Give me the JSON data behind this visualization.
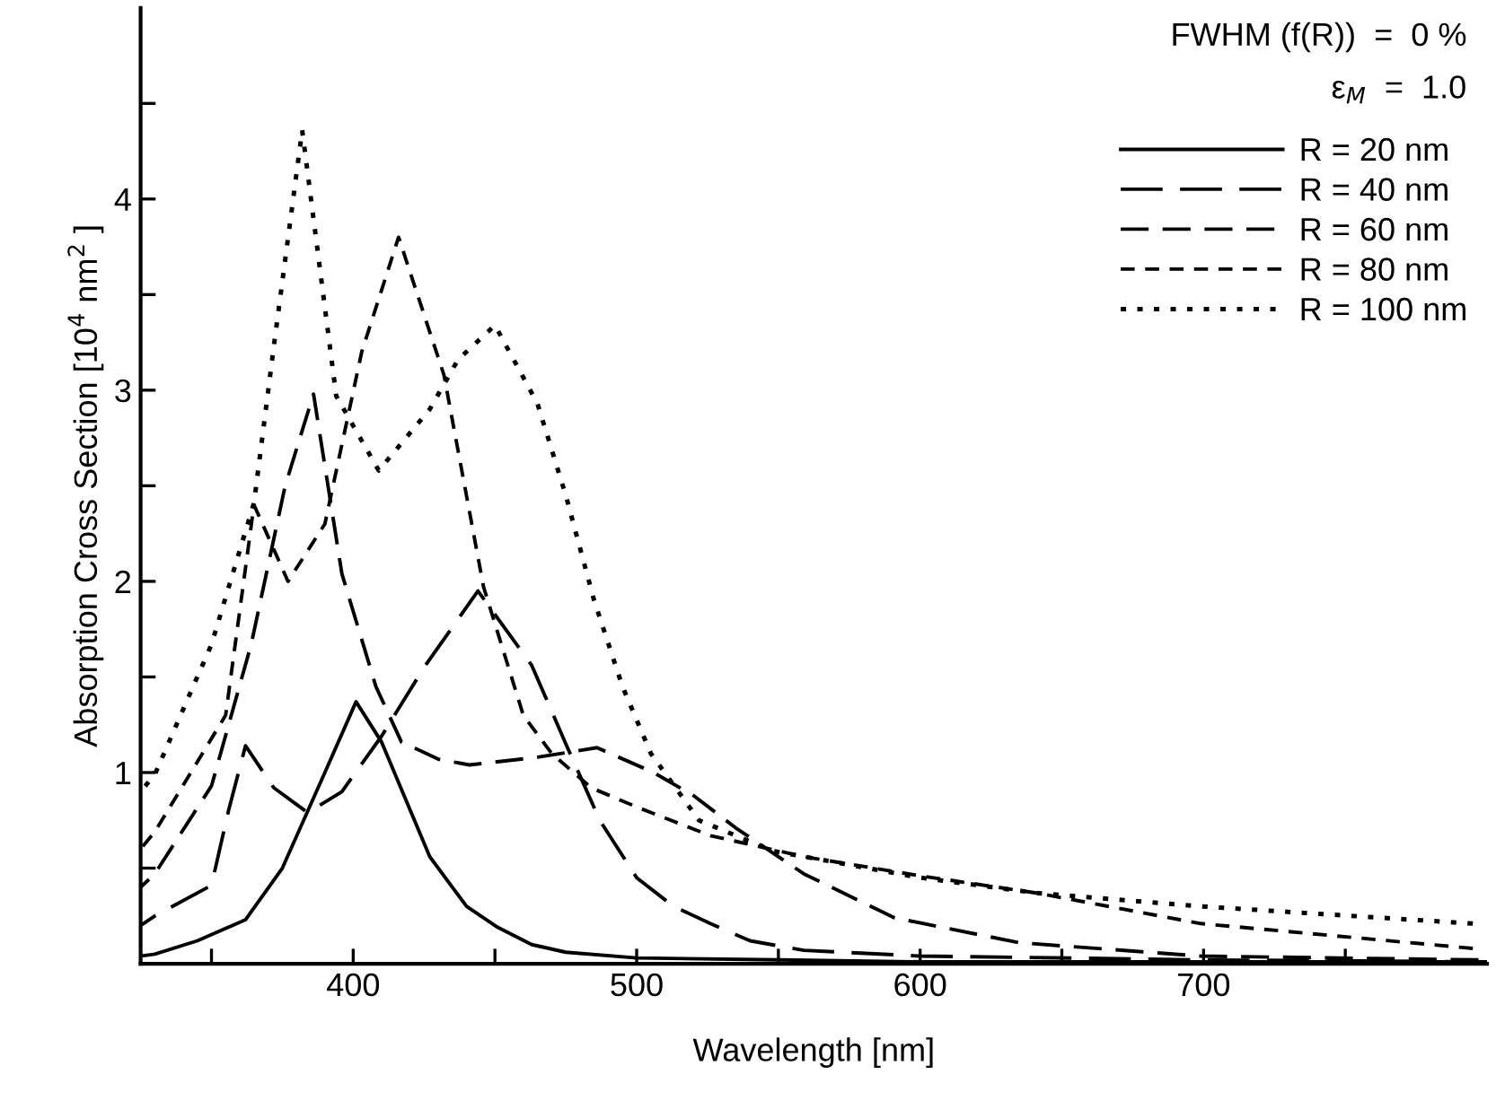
{
  "chart_data": {
    "type": "line",
    "xlabel": "Wavelength [nm]",
    "ylabel": "Absorption Cross Section [10$^{4}$ nm$^{2}$ ]",
    "annotations": [
      "FWHM (f(R))  =  0 %",
      "ε$_{M}$  =  1.0"
    ],
    "xlim": [
      325,
      800
    ],
    "xticks": [
      {
        "value": 350,
        "label": null
      },
      400,
      {
        "value": 450,
        "label": null
      },
      500,
      {
        "value": 550,
        "label": null
      },
      600,
      {
        "value": 650,
        "label": null
      },
      700,
      {
        "value": 750,
        "label": null
      }
    ],
    "ylim": [
      0,
      5
    ],
    "yticks": [
      {
        "value": 0.5,
        "label": null
      },
      1,
      {
        "value": 1.5,
        "label": null
      },
      2,
      {
        "value": 2.5,
        "label": null
      },
      3,
      {
        "value": 3.5,
        "label": null
      },
      4,
      {
        "value": 4.5,
        "label": null
      }
    ],
    "grid": false,
    "legend": "top right",
    "marker": "none",
    "series": [
      {
        "name": "R = 20 nm",
        "color": "#000000",
        "line_style": "solid",
        "x": [
          325,
          330,
          345,
          362,
          375,
          390,
          401,
          410,
          427,
          440,
          451,
          463,
          475,
          500,
          550,
          600,
          700,
          800
        ],
        "values": [
          0.04,
          0.05,
          0.12,
          0.23,
          0.5,
          1.0,
          1.37,
          1.16,
          0.56,
          0.3,
          0.19,
          0.1,
          0.06,
          0.03,
          0.02,
          0.01,
          0.01,
          0.01
        ]
      },
      {
        "name": "R = 40 nm",
        "color": "#000000",
        "line_style": "dashed",
        "x": [
          325,
          330,
          350,
          356,
          362,
          372,
          384,
          396,
          410,
          425,
          444,
          463,
          475,
          487,
          500,
          513,
          526,
          540,
          559,
          600,
          700,
          800
        ],
        "values": [
          0.2,
          0.25,
          0.41,
          0.8,
          1.14,
          0.92,
          0.79,
          0.9,
          1.19,
          1.55,
          1.95,
          1.56,
          1.15,
          0.75,
          0.45,
          0.3,
          0.21,
          0.12,
          0.07,
          0.04,
          0.02,
          0.01
        ]
      },
      {
        "name": "R = 60 nm",
        "color": "#000000",
        "line_style": "dashed",
        "x": [
          325,
          330,
          350,
          364,
          376,
          386,
          396,
          408,
          417,
          430,
          441,
          465,
          486,
          506,
          520,
          535,
          559,
          591,
          635,
          699,
          797
        ],
        "values": [
          0.4,
          0.47,
          0.93,
          1.67,
          2.5,
          2.98,
          2.04,
          1.45,
          1.16,
          1.07,
          1.04,
          1.08,
          1.13,
          1.0,
          0.88,
          0.71,
          0.47,
          0.24,
          0.11,
          0.04,
          0.02
        ]
      },
      {
        "name": "R = 80 nm",
        "color": "#000000",
        "line_style": "dashed",
        "x": [
          325,
          330,
          355,
          365,
          377,
          390,
          403,
          416,
          432,
          446,
          460,
          470,
          484,
          500,
          526,
          559,
          600,
          641,
          699,
          795
        ],
        "values": [
          0.6,
          0.69,
          1.3,
          2.4,
          2.0,
          2.3,
          3.2,
          3.8,
          3.08,
          1.97,
          1.3,
          1.1,
          0.92,
          0.82,
          0.67,
          0.56,
          0.46,
          0.37,
          0.21,
          0.08
        ]
      },
      {
        "name": "R = 100 nm",
        "color": "#000000",
        "line_style": "dotted",
        "x": [
          325,
          330,
          350,
          365,
          372,
          382,
          394,
          409,
          427,
          437,
          450,
          465,
          475,
          485,
          495,
          505,
          522,
          548,
          600,
          641,
          699,
          795
        ],
        "values": [
          0.9,
          0.99,
          1.67,
          2.41,
          3.23,
          4.36,
          2.97,
          2.58,
          2.9,
          3.16,
          3.34,
          2.93,
          2.45,
          1.9,
          1.45,
          1.1,
          0.75,
          0.59,
          0.45,
          0.37,
          0.3,
          0.21
        ]
      }
    ]
  }
}
